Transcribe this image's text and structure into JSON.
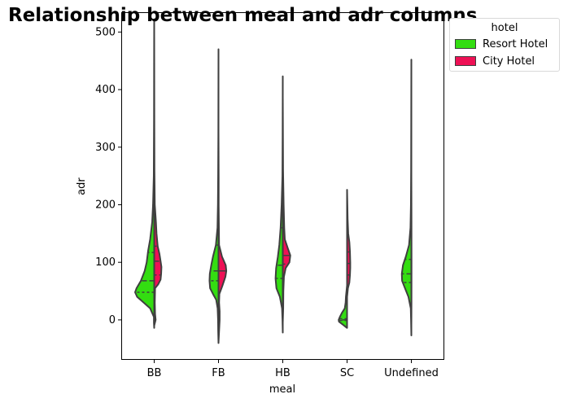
{
  "chart_data": {
    "type": "violin",
    "title": "Relationship between meal and adr columns",
    "xlabel": "meal",
    "ylabel": "adr",
    "categories": [
      "BB",
      "FB",
      "HB",
      "SC",
      "Undefined"
    ],
    "yticks": [
      0,
      100,
      200,
      300,
      400,
      500
    ],
    "ylim": [
      -68,
      533
    ],
    "split": true,
    "inner": "quartile",
    "legend": {
      "title": "hotel",
      "placement": "outside top-right",
      "entries": [
        "Resort Hotel",
        "City Hotel"
      ]
    },
    "colors": {
      "Resort Hotel": "#33dd11",
      "City Hotel": "#ee1155",
      "outline": "#3f3f3f"
    },
    "series": [
      {
        "name": "Resort Hotel",
        "violins": [
          {
            "category": "BB",
            "range": [
              -14,
              522
            ],
            "quartiles": [
              48,
              68,
              117
            ],
            "profile": [
              [
                -14,
                0.0
              ],
              [
                -5,
                0.01
              ],
              [
                5,
                0.01
              ],
              [
                20,
                0.14
              ],
              [
                30,
                0.36
              ],
              [
                40,
                0.59
              ],
              [
                48,
                0.66
              ],
              [
                55,
                0.61
              ],
              [
                68,
                0.46
              ],
              [
                85,
                0.33
              ],
              [
                100,
                0.26
              ],
              [
                120,
                0.21
              ],
              [
                140,
                0.14
              ],
              [
                170,
                0.07
              ],
              [
                200,
                0.04
              ],
              [
                250,
                0.015
              ],
              [
                350,
                0.006
              ],
              [
                450,
                0.003
              ],
              [
                522,
                0.0
              ]
            ]
          },
          {
            "category": "FB",
            "range": [
              -40,
              470
            ],
            "quartiles": [
              68,
              85,
              130
            ],
            "profile": [
              [
                -40,
                0.0
              ],
              [
                -20,
                0.01
              ],
              [
                0,
                0.015
              ],
              [
                20,
                0.03
              ],
              [
                35,
                0.08
              ],
              [
                45,
                0.19
              ],
              [
                55,
                0.29
              ],
              [
                68,
                0.31
              ],
              [
                80,
                0.3
              ],
              [
                95,
                0.25
              ],
              [
                110,
                0.19
              ],
              [
                130,
                0.09
              ],
              [
                160,
                0.035
              ],
              [
                200,
                0.02
              ],
              [
                250,
                0.012
              ],
              [
                320,
                0.005
              ],
              [
                470,
                0.0
              ]
            ]
          },
          {
            "category": "HB",
            "range": [
              -22,
              423
            ],
            "quartiles": [
              72,
              95,
              160
            ],
            "profile": [
              [
                -22,
                0.0
              ],
              [
                0,
                0.01
              ],
              [
                20,
                0.025
              ],
              [
                40,
                0.1
              ],
              [
                55,
                0.22
              ],
              [
                72,
                0.25
              ],
              [
                90,
                0.23
              ],
              [
                110,
                0.17
              ],
              [
                130,
                0.12
              ],
              [
                160,
                0.075
              ],
              [
                200,
                0.04
              ],
              [
                250,
                0.012
              ],
              [
                320,
                0.005
              ],
              [
                423,
                0.0
              ]
            ]
          },
          {
            "category": "SC",
            "range": [
              -14,
              60
            ],
            "quartiles": [
              -1,
              0,
              2
            ],
            "profile": [
              [
                -14,
                0.0
              ],
              [
                -8,
                0.15
              ],
              [
                -3,
                0.28
              ],
              [
                0,
                0.29
              ],
              [
                5,
                0.25
              ],
              [
                12,
                0.18
              ],
              [
                20,
                0.08
              ],
              [
                30,
                0.05
              ],
              [
                40,
                0.04
              ],
              [
                50,
                0.02
              ],
              [
                60,
                0.0
              ]
            ]
          },
          {
            "category": "Undefined",
            "range": [
              -27,
              452
            ],
            "quartiles": [
              65,
              80,
              105
            ],
            "profile": [
              [
                -27,
                0.0
              ],
              [
                0,
                0.01
              ],
              [
                20,
                0.02
              ],
              [
                40,
                0.1
              ],
              [
                55,
                0.22
              ],
              [
                68,
                0.32
              ],
              [
                80,
                0.33
              ],
              [
                95,
                0.29
              ],
              [
                110,
                0.19
              ],
              [
                130,
                0.08
              ],
              [
                160,
                0.03
              ],
              [
                200,
                0.015
              ],
              [
                260,
                0.008
              ],
              [
                350,
                0.004
              ],
              [
                452,
                0.0
              ]
            ]
          }
        ]
      },
      {
        "name": "City Hotel",
        "violins": [
          {
            "category": "BB",
            "range": [
              -10,
              505
            ],
            "quartiles": [
              78,
              102,
              128
            ],
            "profile": [
              [
                -10,
                0.0
              ],
              [
                0,
                0.05
              ],
              [
                10,
                0.03
              ],
              [
                30,
                0.02
              ],
              [
                55,
                0.03
              ],
              [
                62,
                0.14
              ],
              [
                70,
                0.22
              ],
              [
                80,
                0.24
              ],
              [
                92,
                0.25
              ],
              [
                102,
                0.22
              ],
              [
                115,
                0.18
              ],
              [
                128,
                0.12
              ],
              [
                150,
                0.08
              ],
              [
                170,
                0.06
              ],
              [
                200,
                0.02
              ],
              [
                260,
                0.008
              ],
              [
                350,
                0.004
              ],
              [
                505,
                0.0
              ]
            ]
          },
          {
            "category": "FB",
            "range": [
              -40,
              330
            ],
            "quartiles": [
              85,
              85,
              85
            ],
            "profile": [
              [
                -40,
                0.0
              ],
              [
                -20,
                0.02
              ],
              [
                0,
                0.04
              ],
              [
                15,
                0.04
              ],
              [
                30,
                0.02
              ],
              [
                45,
                0.03
              ],
              [
                60,
                0.14
              ],
              [
                75,
                0.24
              ],
              [
                85,
                0.27
              ],
              [
                95,
                0.25
              ],
              [
                110,
                0.12
              ],
              [
                130,
                0.02
              ],
              [
                200,
                0.006
              ],
              [
                250,
                0.006
              ],
              [
                330,
                0.0
              ]
            ]
          },
          {
            "category": "HB",
            "range": [
              -5,
              390
            ],
            "quartiles": [
              97,
              112,
              112
            ],
            "profile": [
              [
                -5,
                0.0
              ],
              [
                20,
                0.015
              ],
              [
                50,
                0.02
              ],
              [
                75,
                0.04
              ],
              [
                90,
                0.1
              ],
              [
                100,
                0.23
              ],
              [
                112,
                0.26
              ],
              [
                125,
                0.17
              ],
              [
                140,
                0.07
              ],
              [
                160,
                0.05
              ],
              [
                200,
                0.03
              ],
              [
                260,
                0.01
              ],
              [
                390,
                0.0
              ]
            ]
          },
          {
            "category": "SC",
            "range": [
              40,
              226
            ],
            "quartiles": [
              78,
              98,
              118
            ],
            "profile": [
              [
                40,
                0.0
              ],
              [
                55,
                0.03
              ],
              [
                65,
                0.08
              ],
              [
                78,
                0.1
              ],
              [
                90,
                0.11
              ],
              [
                100,
                0.11
              ],
              [
                118,
                0.1
              ],
              [
                135,
                0.08
              ],
              [
                150,
                0.04
              ],
              [
                175,
                0.02
              ],
              [
                200,
                0.01
              ],
              [
                226,
                0.0
              ]
            ]
          },
          {
            "category": "Undefined",
            "range": [
              -10,
              250
            ],
            "quartiles": [
              null,
              null,
              null
            ],
            "profile": [
              [
                -10,
                0.0
              ],
              [
                30,
                0.004
              ],
              [
                100,
                0.006
              ],
              [
                180,
                0.004
              ],
              [
                250,
                0.0
              ]
            ]
          }
        ]
      }
    ]
  }
}
